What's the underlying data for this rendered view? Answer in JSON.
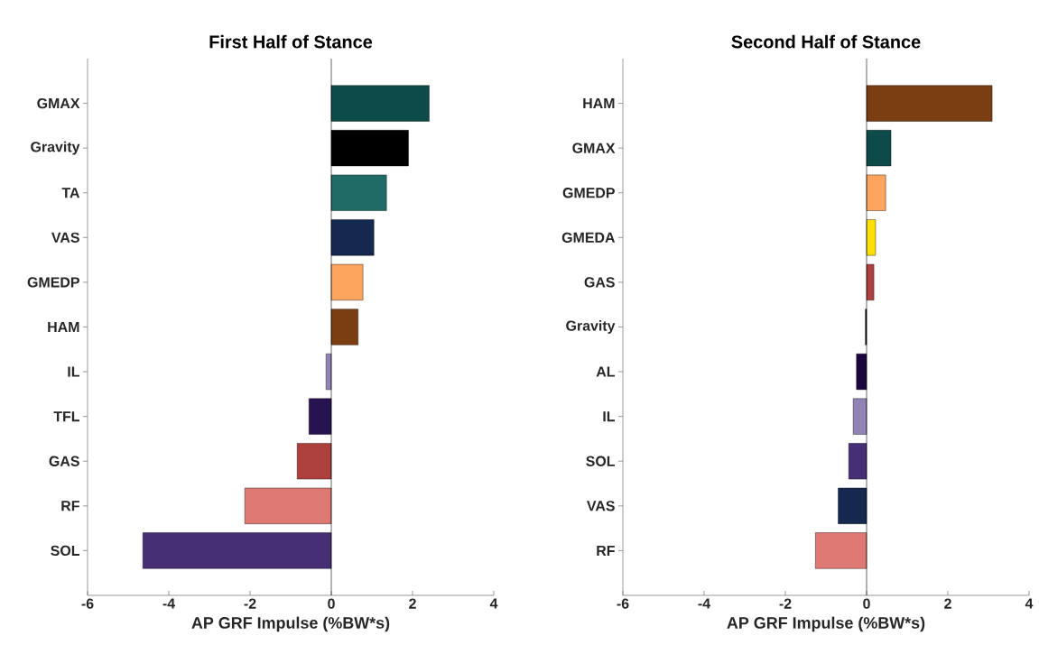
{
  "chart_data": [
    {
      "type": "bar",
      "orientation": "horizontal",
      "title": "First Half of Stance",
      "xlabel": "AP GRF Impulse (%BW*s)",
      "categories": [
        "GMAX",
        "Gravity",
        "TA",
        "VAS",
        "GMEDP",
        "HAM",
        "IL",
        "TFL",
        "GAS",
        "RF",
        "SOL"
      ],
      "values": [
        2.41,
        1.9,
        1.36,
        1.05,
        0.78,
        0.66,
        -0.13,
        -0.55,
        -0.84,
        -2.13,
        -4.64
      ],
      "colors": [
        "#0d4a4a",
        "#000000",
        "#1f6b66",
        "#142850",
        "#fda45e",
        "#7b3d12",
        "#9183b5",
        "#271350",
        "#ad403c",
        "#dd7873",
        "#462f75"
      ],
      "xlim": [
        -6,
        4
      ],
      "xticks": [
        -6,
        -4,
        -2,
        0,
        2,
        4
      ]
    },
    {
      "type": "bar",
      "orientation": "horizontal",
      "title": "Second Half of Stance",
      "xlabel": "AP GRF Impulse (%BW*s)",
      "categories": [
        "HAM",
        "GMAX",
        "GMEDP",
        "GMEDA",
        "GAS",
        "Gravity",
        "AL",
        "IL",
        "SOL",
        "VAS",
        "RF"
      ],
      "values": [
        3.09,
        0.6,
        0.47,
        0.22,
        0.18,
        -0.03,
        -0.25,
        -0.33,
        -0.44,
        -0.7,
        -1.26
      ],
      "colors": [
        "#7b3d12",
        "#0d4a4a",
        "#fda45e",
        "#fde000",
        "#ad403c",
        "#000000",
        "#1a073e",
        "#9183b5",
        "#462f75",
        "#142850",
        "#dd7873"
      ],
      "xlim": [
        -6,
        4
      ],
      "xticks": [
        -6,
        -4,
        -2,
        0,
        2,
        4
      ]
    }
  ]
}
